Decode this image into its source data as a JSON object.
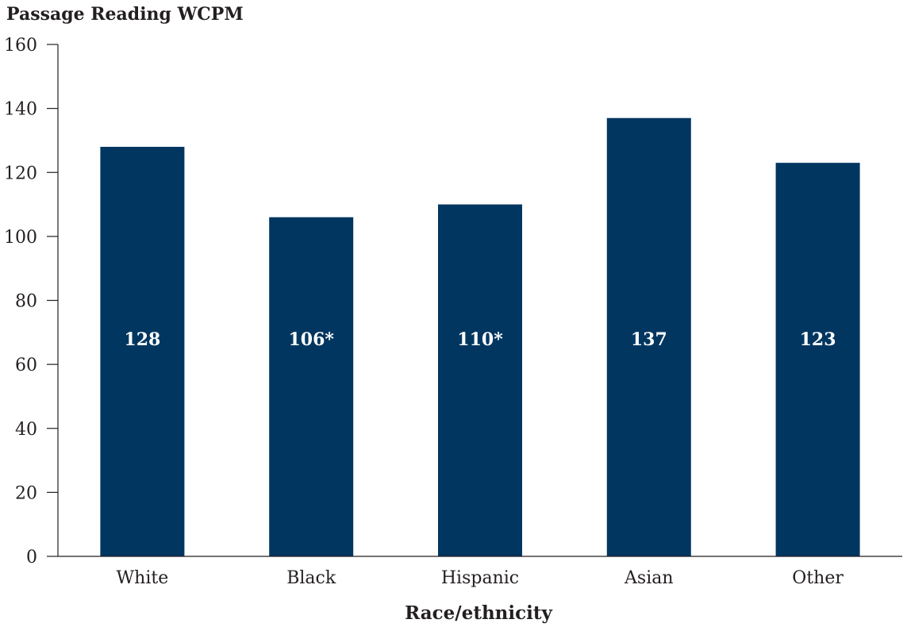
{
  "chart_data": {
    "type": "bar",
    "ylabel": "Passage Reading WCPM",
    "xlabel": "Race/ethnicity",
    "categories": [
      "White",
      "Black",
      "Hispanic",
      "Asian",
      "Other"
    ],
    "values": [
      128,
      106,
      110,
      137,
      123
    ],
    "value_labels": [
      "128",
      "106*",
      "110*",
      "137",
      "123"
    ],
    "ylim": [
      0,
      160
    ],
    "yticks": [
      0,
      20,
      40,
      60,
      80,
      100,
      120,
      140,
      160
    ],
    "ytick_labels": [
      "0",
      "20",
      "40",
      "60",
      "80",
      "100",
      "120",
      "140",
      "160"
    ],
    "bar_color": "#003660",
    "grid": false,
    "legend": "none"
  }
}
